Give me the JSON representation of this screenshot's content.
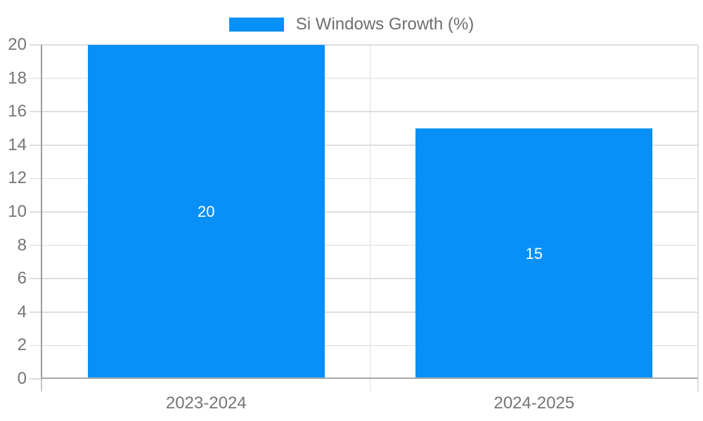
{
  "chart_data": {
    "type": "bar",
    "title": "",
    "categories": [
      "2023-2024",
      "2024-2025"
    ],
    "series": [
      {
        "name": "Si Windows Growth (%)",
        "values": [
          20,
          15
        ],
        "color": "#0990F8"
      }
    ],
    "value_labels": [
      "20",
      "15"
    ],
    "ylim": [
      0,
      20
    ],
    "yticks": [
      0,
      2,
      4,
      6,
      8,
      10,
      12,
      14,
      16,
      18,
      20
    ],
    "xlabel": "",
    "ylabel": "",
    "grid": true,
    "legend_position": "top-center"
  },
  "legend": {
    "label": "Si Windows Growth (%)",
    "swatch_color": "#0990F8"
  },
  "colors": {
    "background": "#FFFFFF",
    "bar": "#0990F8",
    "axis_line": "#9C9C9C",
    "axis_tick_extension": "#C9C9C9",
    "baseline": "#A8A8A8",
    "gridline": "#DEDEDE",
    "axis_label": "#757575",
    "legend_label": "#6E6E6E",
    "bar_label": "#FFFFFF"
  }
}
